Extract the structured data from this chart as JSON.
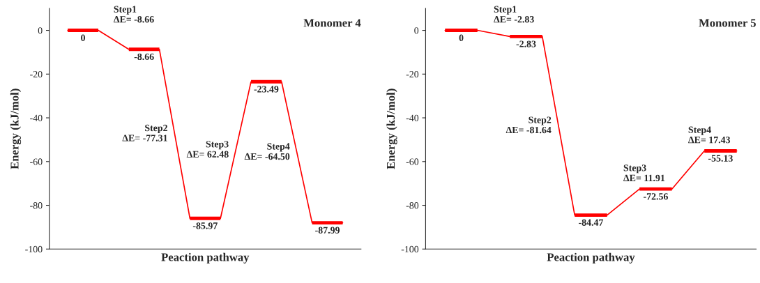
{
  "chart_data": [
    {
      "type": "line",
      "title": "Monomer 4",
      "xlabel": "Peaction pathway",
      "ylabel": "Energy (kJ/mol)",
      "categories": [
        null,
        null,
        null,
        null,
        null,
        null,
        null,
        null,
        null,
        null
      ],
      "series": [
        {
          "color": "#ff0000",
          "values": [
            0,
            0,
            -8.66,
            -8.66,
            -85.97,
            -85.97,
            -23.49,
            -23.49,
            -87.99,
            -87.99
          ],
          "value_labels": [
            "0",
            null,
            "-8.66",
            null,
            "-85.97",
            null,
            "-23.49",
            null,
            "-87.99",
            null
          ]
        }
      ],
      "ylim": [
        -100,
        10
      ],
      "yticks": [
        0,
        -20,
        -40,
        -60,
        -80,
        -100
      ],
      "tick_labels": "y",
      "annotations": [
        "Step1\nΔE= -8.66",
        "Step2\nΔE= -77.31",
        "Step3\nΔE= 62.48",
        "Step4\nΔE= -64.50"
      ]
    },
    {
      "type": "line",
      "title": "Monomer 5",
      "xlabel": "Peaction pathway",
      "ylabel": "Energy (kJ/mol)",
      "categories": [
        null,
        null,
        null,
        null,
        null,
        null,
        null,
        null,
        null,
        null
      ],
      "series": [
        {
          "color": "#ff0000",
          "values": [
            0,
            0,
            -2.83,
            -2.83,
            -84.47,
            -84.47,
            -72.56,
            -72.56,
            -55.13,
            -55.13
          ],
          "value_labels": [
            "0",
            null,
            "-2.83",
            null,
            "-84.47",
            null,
            "-72.56",
            null,
            "-55.13",
            null
          ]
        }
      ],
      "ylim": [
        -100,
        10
      ],
      "yticks": [
        0,
        -20,
        -40,
        -60,
        -80,
        -100
      ],
      "tick_labels": "y",
      "annotations": [
        "Step1\nΔE= -2.83",
        "Step2\nΔE= -81.64",
        "Step3\nΔE= 11.91",
        "Step4\nΔE= 17.43"
      ]
    }
  ]
}
